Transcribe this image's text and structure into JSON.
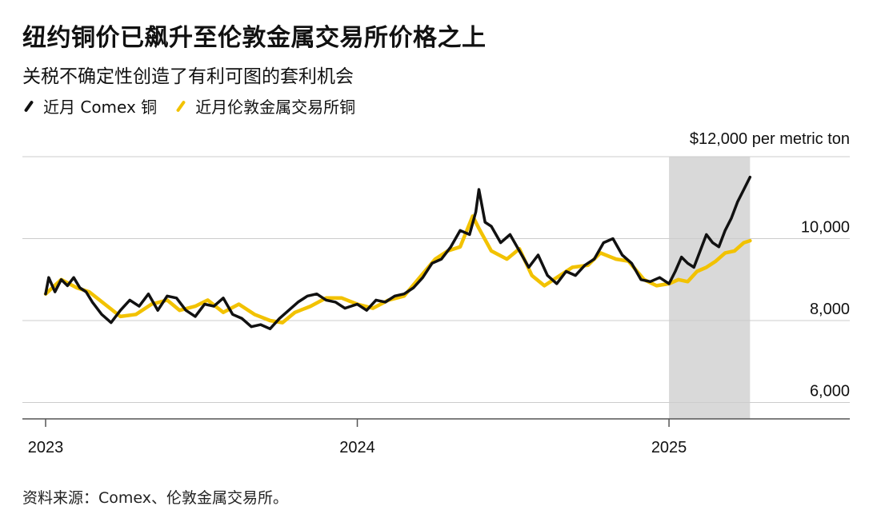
{
  "title": "纽约铜价已飙升至伦敦金属交易所价格之上",
  "subtitle": "关税不确定性创造了有利可图的套利机会",
  "legend": [
    {
      "label": "近月 Comex 铜",
      "color": "#111111"
    },
    {
      "label": "近月伦敦金属交易所铜",
      "color": "#f2c200"
    }
  ],
  "source": "资料来源：Comex、伦敦金属交易所。",
  "chart_data": {
    "type": "line",
    "y_unit_label": "$12,000 per metric ton",
    "y_ticks": [
      {
        "value": 10000,
        "label": "10,000"
      },
      {
        "value": 8000,
        "label": "8,000"
      },
      {
        "value": 6000,
        "label": "6,000"
      }
    ],
    "x_ticks": [
      {
        "value": 2023.0,
        "label": "2023"
      },
      {
        "value": 2024.0,
        "label": "2024"
      },
      {
        "value": 2025.0,
        "label": "2025"
      }
    ],
    "xlim": [
      2023.0,
      2025.58
    ],
    "ylim": [
      5600,
      12000
    ],
    "grid": true,
    "shaded_region": {
      "x_start": 2025.0,
      "x_end": 2025.26,
      "color": "#d9d9d9"
    },
    "series": [
      {
        "name": "近月伦敦金属交易所铜",
        "color": "#f2c200",
        "x": [
          2023.0,
          2023.05,
          2023.1,
          2023.14,
          2023.19,
          2023.24,
          2023.29,
          2023.34,
          2023.39,
          2023.43,
          2023.48,
          2023.52,
          2023.57,
          2023.62,
          2023.67,
          2023.72,
          2023.76,
          2023.8,
          2023.85,
          2023.9,
          2023.95,
          2024.0,
          2024.05,
          2024.1,
          2024.15,
          2024.2,
          2024.25,
          2024.29,
          2024.33,
          2024.37,
          2024.39,
          2024.43,
          2024.48,
          2024.52,
          2024.56,
          2024.6,
          2024.65,
          2024.69,
          2024.74,
          2024.78,
          2024.83,
          2024.87,
          2024.92,
          2024.96,
          2025.0,
          2025.03,
          2025.06,
          2025.09,
          2025.12,
          2025.15,
          2025.18,
          2025.21,
          2025.24,
          2025.26
        ],
        "y": [
          8650,
          9000,
          8800,
          8700,
          8400,
          8100,
          8150,
          8400,
          8500,
          8250,
          8350,
          8500,
          8200,
          8400,
          8150,
          8000,
          7950,
          8200,
          8350,
          8550,
          8550,
          8400,
          8300,
          8500,
          8600,
          9050,
          9500,
          9700,
          9800,
          10550,
          10250,
          9700,
          9500,
          9750,
          9100,
          8850,
          9100,
          9300,
          9350,
          9650,
          9500,
          9450,
          9000,
          8850,
          8900,
          9000,
          8950,
          9200,
          9300,
          9450,
          9650,
          9700,
          9900,
          9950
        ]
      },
      {
        "name": "近月 Comex 铜",
        "color": "#111111",
        "x": [
          2023.0,
          2023.01,
          2023.03,
          2023.05,
          2023.07,
          2023.09,
          2023.11,
          2023.13,
          2023.15,
          2023.18,
          2023.21,
          2023.24,
          2023.27,
          2023.3,
          2023.33,
          2023.36,
          2023.39,
          2023.42,
          2023.45,
          2023.48,
          2023.51,
          2023.54,
          2023.57,
          2023.6,
          2023.63,
          2023.66,
          2023.69,
          2023.72,
          2023.75,
          2023.78,
          2023.81,
          2023.84,
          2023.87,
          2023.9,
          2023.93,
          2023.96,
          2024.0,
          2024.03,
          2024.06,
          2024.09,
          2024.12,
          2024.15,
          2024.18,
          2024.21,
          2024.24,
          2024.27,
          2024.3,
          2024.33,
          2024.36,
          2024.38,
          2024.39,
          2024.41,
          2024.43,
          2024.46,
          2024.49,
          2024.52,
          2024.55,
          2024.58,
          2024.61,
          2024.64,
          2024.67,
          2024.7,
          2024.73,
          2024.76,
          2024.79,
          2024.82,
          2024.85,
          2024.88,
          2024.91,
          2024.94,
          2024.97,
          2025.0,
          2025.02,
          2025.04,
          2025.06,
          2025.08,
          2025.1,
          2025.12,
          2025.14,
          2025.16,
          2025.18,
          2025.2,
          2025.22,
          2025.24,
          2025.26
        ],
        "y": [
          8650,
          9050,
          8700,
          9000,
          8850,
          9050,
          8800,
          8700,
          8450,
          8150,
          7950,
          8250,
          8500,
          8350,
          8650,
          8250,
          8600,
          8550,
          8250,
          8100,
          8400,
          8350,
          8550,
          8150,
          8050,
          7850,
          7900,
          7800,
          8050,
          8250,
          8450,
          8600,
          8650,
          8500,
          8450,
          8300,
          8400,
          8250,
          8500,
          8450,
          8600,
          8650,
          8800,
          9050,
          9400,
          9500,
          9800,
          10200,
          10100,
          10650,
          11200,
          10400,
          10300,
          9900,
          10100,
          9700,
          9300,
          9600,
          9100,
          8900,
          9200,
          9100,
          9350,
          9500,
          9900,
          10000,
          9600,
          9400,
          9000,
          8950,
          9050,
          8900,
          9200,
          9550,
          9400,
          9300,
          9700,
          10100,
          9900,
          9800,
          10200,
          10500,
          10900,
          11200,
          11500
        ]
      }
    ]
  }
}
